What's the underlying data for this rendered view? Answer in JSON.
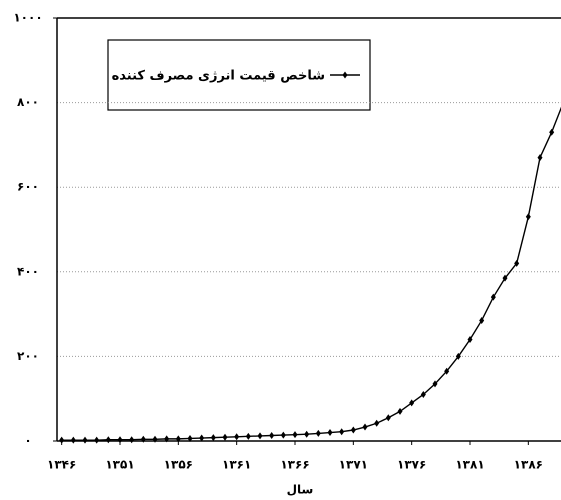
{
  "chart_data": {
    "type": "line",
    "x_label": "سال",
    "x": [
      1346,
      1347,
      1348,
      1349,
      1350,
      1351,
      1352,
      1353,
      1354,
      1355,
      1356,
      1357,
      1358,
      1359,
      1360,
      1361,
      1362,
      1363,
      1364,
      1365,
      1366,
      1367,
      1368,
      1369,
      1370,
      1371,
      1372,
      1373,
      1374,
      1375,
      1376,
      1377,
      1378,
      1379,
      1380,
      1381,
      1382,
      1383,
      1384,
      1385,
      1386,
      1387,
      1388,
      1389
    ],
    "series": [
      {
        "name": "شاخص قیمت انرژی مصرف کننده",
        "color": "#000000",
        "values": [
          2,
          2,
          2,
          2,
          3,
          3,
          3,
          4,
          4,
          5,
          5,
          6,
          7,
          8,
          9,
          10,
          11,
          12,
          13,
          14,
          15,
          16,
          18,
          20,
          22,
          26,
          33,
          42,
          55,
          70,
          90,
          110,
          135,
          165,
          200,
          240,
          285,
          340,
          385,
          420,
          530,
          670,
          730,
          800
        ]
      }
    ],
    "xlim": [
      1345.6,
      1388.8
    ],
    "xticks": [
      {
        "value": 1346,
        "label": "۱۳۴۶"
      },
      {
        "value": 1351,
        "label": "۱۳۵۱"
      },
      {
        "value": 1356,
        "label": "۱۳۵۶"
      },
      {
        "value": 1361,
        "label": "۱۳۶۱"
      },
      {
        "value": 1366,
        "label": "۱۳۶۶"
      },
      {
        "value": 1371,
        "label": "۱۳۷۱"
      },
      {
        "value": 1376,
        "label": "۱۳۷۶"
      },
      {
        "value": 1381,
        "label": "۱۳۸۱"
      },
      {
        "value": 1386,
        "label": "۱۳۸۶"
      }
    ],
    "ylim": [
      0,
      1000
    ],
    "yticks": [
      {
        "value": 0,
        "label": "۰"
      },
      {
        "value": 200,
        "label": "۲۰۰"
      },
      {
        "value": 400,
        "label": "۴۰۰"
      },
      {
        "value": 600,
        "label": "۶۰۰"
      },
      {
        "value": 800,
        "label": "۸۰۰"
      },
      {
        "value": 1000,
        "label": "۱۰۰۰"
      }
    ],
    "grid": true
  }
}
